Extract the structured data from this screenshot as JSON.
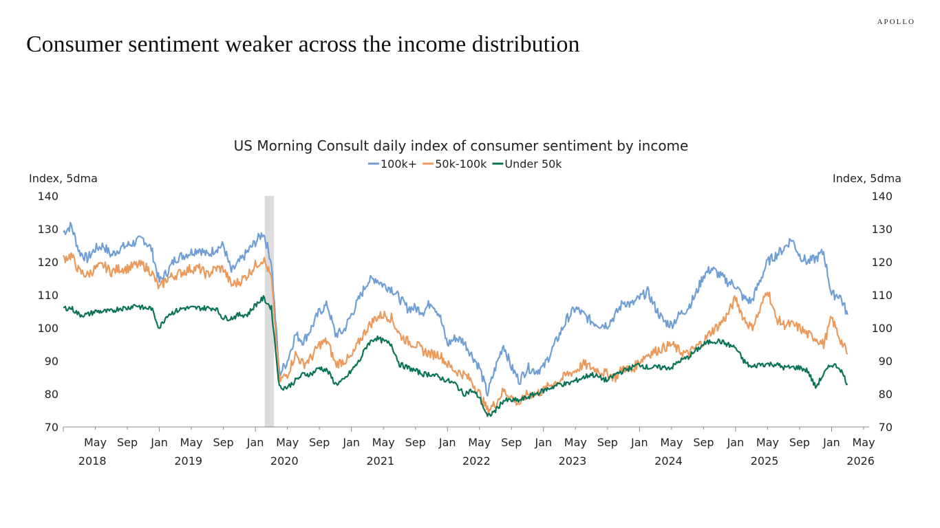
{
  "brand": "APOLLO",
  "headline": "Consumer sentiment weaker across the income distribution",
  "chart_data": {
    "type": "line",
    "title": "US Morning Consult daily index of consumer sentiment by income",
    "ylabel_left": "Index, 5dma",
    "ylabel_right": "Index, 5dma",
    "ylim": [
      70,
      140
    ],
    "yticks": [
      70,
      80,
      90,
      100,
      110,
      120,
      130,
      140
    ],
    "xlim": [
      "2018-01",
      "2026-05"
    ],
    "x_tick_labels": [
      "May",
      "Sep",
      "Jan",
      "May",
      "Sep",
      "Jan",
      "May",
      "Sep",
      "Jan",
      "May",
      "Sep",
      "Jan",
      "May",
      "Sep",
      "Jan",
      "May",
      "Sep",
      "Jan",
      "May",
      "Sep",
      "Jan",
      "May",
      "Sep",
      "Jan",
      "May",
      "Sep",
      "Jan",
      "May"
    ],
    "year_labels": [
      "2018",
      "2019",
      "2020",
      "2021",
      "2022",
      "2023",
      "2024",
      "2025",
      "2026"
    ],
    "legend_position": "top",
    "grid": false,
    "shaded_period": [
      "2020-02",
      "2020-04"
    ],
    "shade_color": "#dcdcdc",
    "x_start": "2018-01",
    "x_frequency": "monthly",
    "series": [
      {
        "name": "100k+",
        "color": "#6f9fd4",
        "values": [
          129,
          131,
          123,
          121,
          124,
          125,
          122,
          124,
          125,
          126,
          127,
          124,
          114,
          117,
          121,
          122,
          123,
          124,
          122,
          124,
          125,
          117,
          120,
          123,
          126,
          129,
          120,
          86,
          90,
          98,
          96,
          100,
          105,
          107,
          98,
          99,
          104,
          109,
          114,
          115,
          113,
          112,
          109,
          106,
          106,
          105,
          108,
          104,
          95,
          97,
          96,
          92,
          88,
          80,
          88,
          95,
          88,
          84,
          88,
          87,
          88,
          93,
          98,
          103,
          106,
          104,
          102,
          101,
          101,
          104,
          108,
          107,
          109,
          111,
          106,
          102,
          101,
          104,
          106,
          110,
          116,
          118,
          116,
          114,
          113,
          109,
          108,
          114,
          120,
          122,
          124,
          127,
          122,
          120,
          121,
          123,
          110,
          110,
          104
        ]
      },
      {
        "name": "50k-100k",
        "color": "#eb9a5c",
        "values": [
          121,
          122,
          117,
          116,
          118,
          119,
          117,
          118,
          118,
          119,
          119,
          117,
          112,
          115,
          116,
          117,
          118,
          118,
          116,
          118,
          118,
          113,
          114,
          116,
          119,
          121,
          115,
          84,
          86,
          92,
          89,
          91,
          95,
          96,
          89,
          90,
          91,
          96,
          100,
          103,
          104,
          103,
          98,
          96,
          95,
          93,
          92,
          92,
          89,
          87,
          86,
          84,
          80,
          75,
          77,
          81,
          79,
          77,
          80,
          80,
          81,
          83,
          84,
          86,
          87,
          89,
          88,
          87,
          86,
          85,
          88,
          87,
          90,
          92,
          93,
          94,
          95,
          93,
          92,
          94,
          96,
          99,
          101,
          104,
          109,
          103,
          100,
          105,
          112,
          103,
          101,
          101,
          100,
          98,
          97,
          95,
          103,
          97,
          92
        ]
      },
      {
        "name": "Under 50k",
        "color": "#0a7358",
        "values": [
          106,
          106,
          104,
          104,
          105,
          105,
          105,
          106,
          106,
          107,
          106,
          106,
          100,
          104,
          105,
          106,
          106,
          106,
          106,
          106,
          103,
          103,
          104,
          104,
          107,
          109,
          106,
          82,
          82,
          84,
          86,
          86,
          88,
          87,
          83,
          84,
          87,
          90,
          95,
          97,
          96,
          95,
          89,
          88,
          87,
          86,
          86,
          85,
          84,
          83,
          80,
          81,
          79,
          73,
          75,
          78,
          78,
          78,
          79,
          80,
          81,
          82,
          83,
          83,
          84,
          85,
          86,
          85,
          84,
          86,
          87,
          88,
          89,
          88,
          88,
          88,
          88,
          90,
          91,
          93,
          95,
          96,
          96,
          95,
          94,
          90,
          88,
          89,
          89,
          89,
          88,
          88,
          88,
          87,
          82,
          86,
          89,
          88,
          83
        ]
      }
    ]
  }
}
